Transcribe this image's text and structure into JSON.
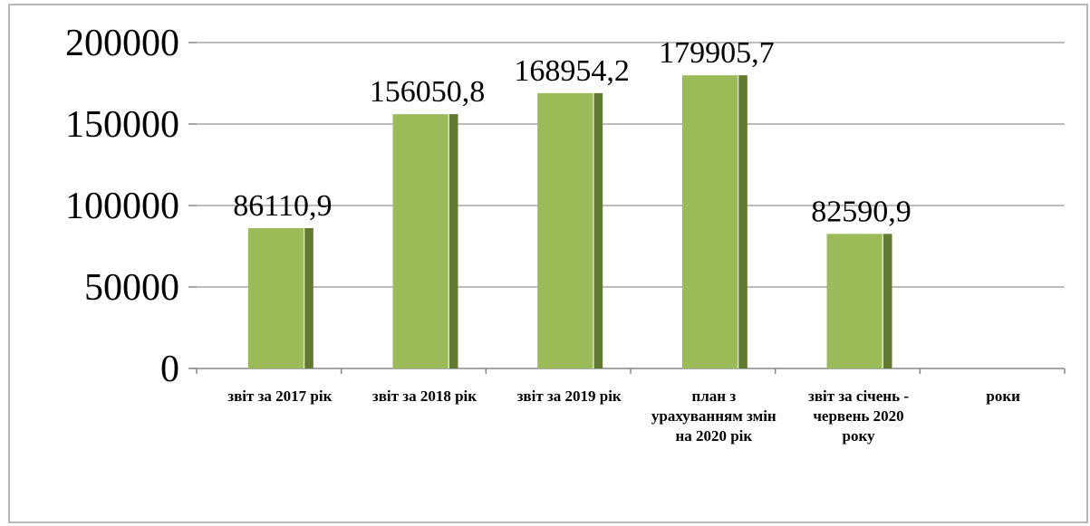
{
  "chart_data": {
    "type": "bar",
    "categories": [
      "звіт за 2017 рік",
      "звіт за 2018 рік",
      "звіт за 2019 рік",
      "план з урахуванням змін на  2020 рік",
      "звіт за січень - червень 2020 року",
      "роки"
    ],
    "values": [
      86110.9,
      156050.8,
      168954.2,
      179905.7,
      82590.9,
      null
    ],
    "value_labels": [
      "86110,9",
      "156050,8",
      "168954,2",
      "179905,7",
      "82590,9",
      null
    ],
    "color": "#9bbb59",
    "ylim": [
      0,
      200000
    ],
    "yticks": [
      0,
      50000,
      100000,
      150000,
      200000
    ],
    "grid": true
  }
}
